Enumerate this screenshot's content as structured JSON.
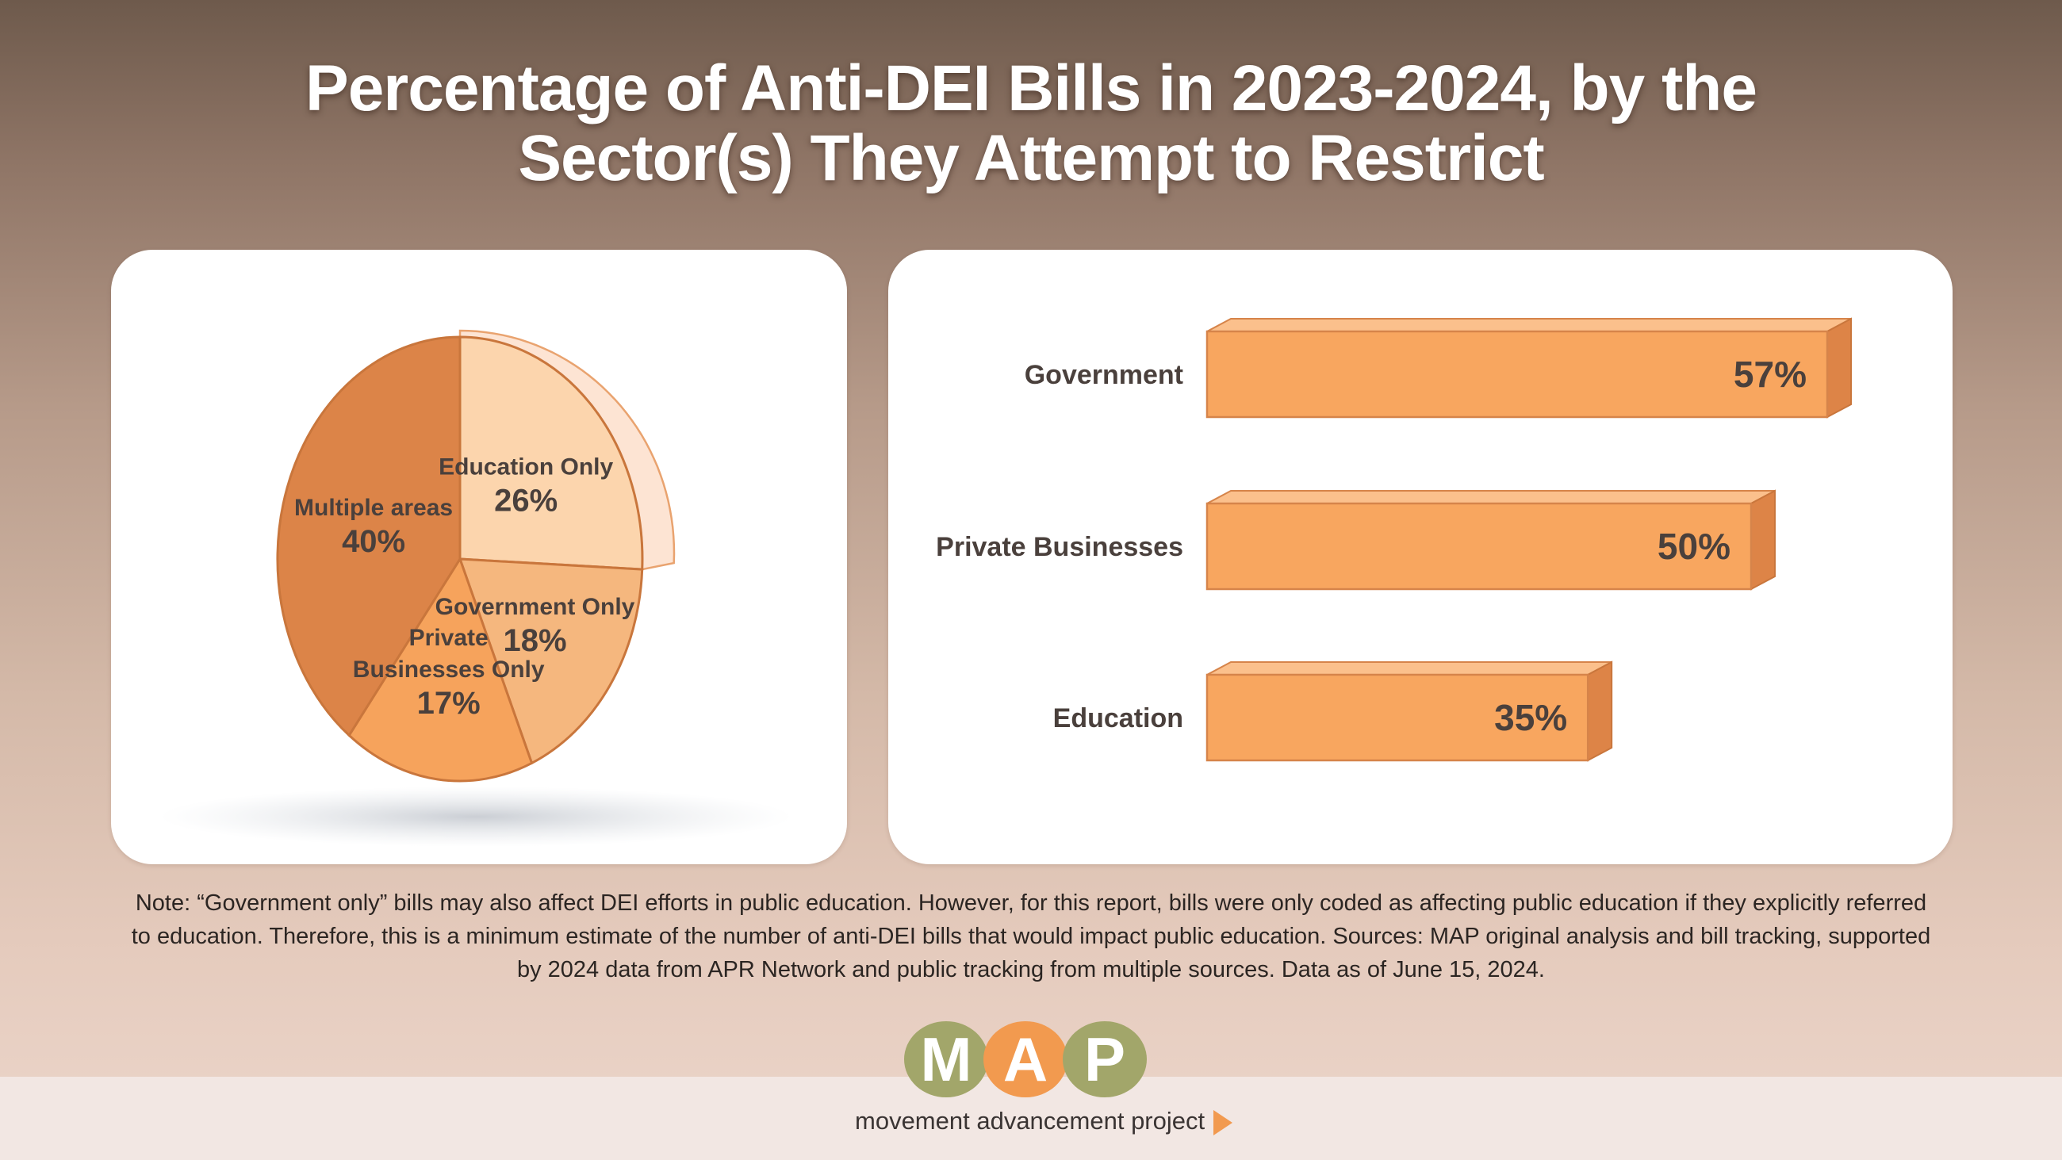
{
  "title": {
    "line1": "Percentage of Anti-DEI Bills in 2023-2024, by the",
    "line2": "Sector(s) They Attempt to Restrict"
  },
  "chart_data": [
    {
      "type": "pie",
      "title": "Percentage of Anti-DEI Bills in 2023-2024, by the Sector(s) They Attempt to Restrict",
      "slices": [
        {
          "label": [
            "Education Only"
          ],
          "value": 26,
          "value_label": "26%",
          "color": "#fcd5ad"
        },
        {
          "label": [
            "Government Only"
          ],
          "value": 18,
          "value_label": "18%",
          "color": "#f5b77e"
        },
        {
          "label": [
            "Private",
            "Businesses Only"
          ],
          "value": 17,
          "value_label": "17%",
          "color": "#f6a35c"
        },
        {
          "label": [
            "Multiple areas"
          ],
          "value": 40,
          "value_label": "40%",
          "color": "#dc8448"
        }
      ],
      "unit": "%"
    },
    {
      "type": "bar",
      "orientation": "horizontal",
      "categories": [
        "Government",
        "Private Businesses",
        "Education"
      ],
      "values": [
        57,
        50,
        35
      ],
      "value_labels": [
        "57%",
        "50%",
        "35%"
      ],
      "unit": "%",
      "xlim": [
        0,
        57
      ],
      "bar_color": "#f8a65f"
    }
  ],
  "note": "Note: “Government only” bills may also affect DEI efforts in public education. However, for this report, bills were only coded as affecting public education if they explicitly referred to education. Therefore, this is a minimum estimate of the number of anti-DEI bills that would impact public education.  Sources: MAP original analysis and bill tracking, supported by 2024 data from APR Network and public tracking from multiple sources. Data as of June 15, 2024.",
  "logo": {
    "letters": [
      "M",
      "A",
      "P"
    ],
    "subtitle": "movement advancement project",
    "colors": [
      "#a2a66a",
      "#f29a4f",
      "#a2a66a"
    ]
  }
}
